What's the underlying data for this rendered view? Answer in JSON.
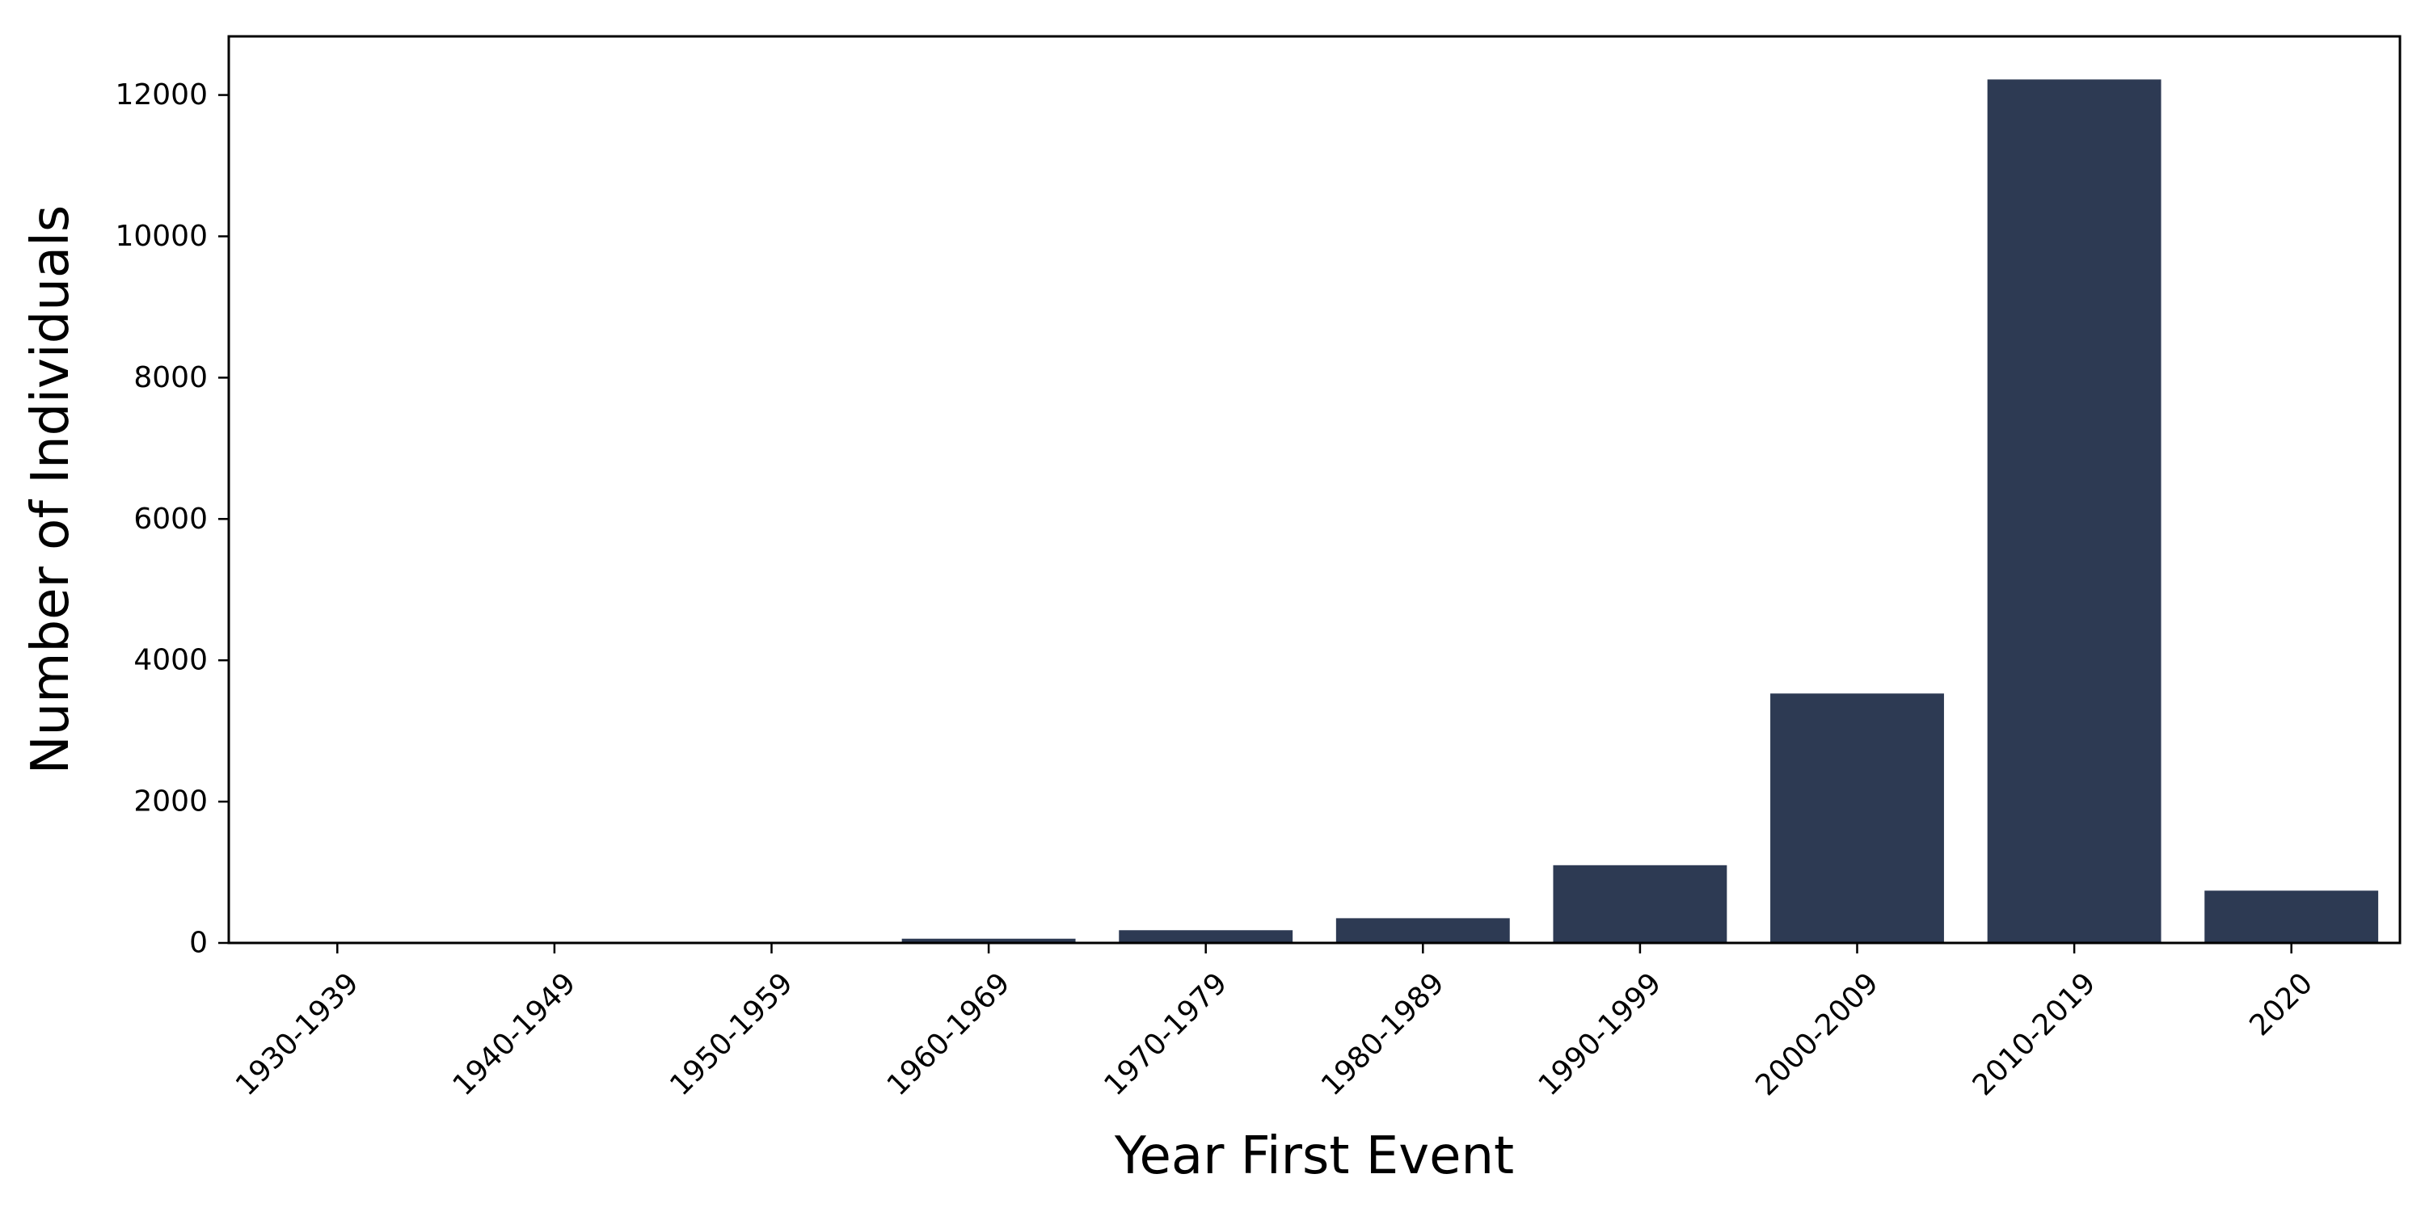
{
  "chart_data": {
    "type": "bar",
    "title": "",
    "xlabel": "Year First Event",
    "ylabel": "Number of Individuals",
    "categories": [
      "1930-1939",
      "1940-1949",
      "1950-1959",
      "1960-1969",
      "1970-1979",
      "1980-1989",
      "1990-1999",
      "2000-2009",
      "2010-2019",
      "2020"
    ],
    "values": [
      2,
      3,
      8,
      60,
      180,
      350,
      1100,
      3530,
      12220,
      740
    ],
    "ylim": [
      0,
      12830
    ],
    "yticks": [
      0,
      2000,
      4000,
      6000,
      8000,
      10000,
      12000
    ],
    "grid": false,
    "legend": "none",
    "bar_color": "#2d3a53"
  }
}
